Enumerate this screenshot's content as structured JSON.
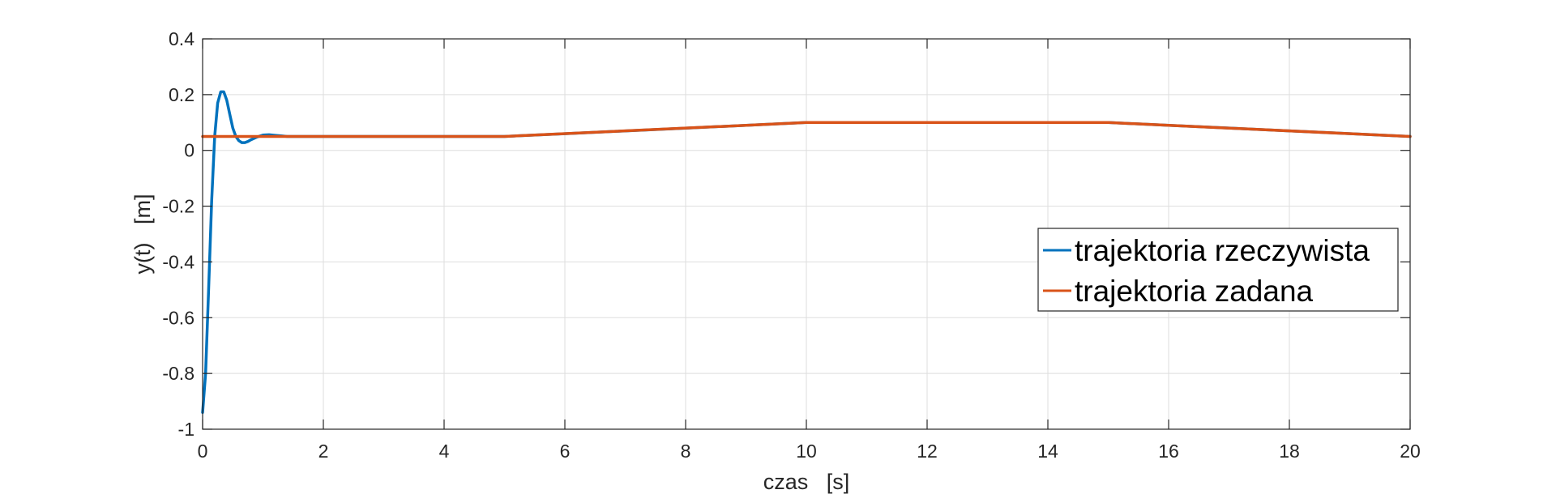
{
  "chart_data": {
    "type": "line",
    "xlabel": "czas   [s]",
    "ylabel": "y(t)   [m]",
    "xlim": [
      0,
      20
    ],
    "ylim": [
      -1,
      0.4
    ],
    "xticks": [
      0,
      2,
      4,
      6,
      8,
      10,
      12,
      14,
      16,
      18,
      20
    ],
    "xtick_labels": [
      "0",
      "2",
      "4",
      "6",
      "8",
      "10",
      "12",
      "14",
      "16",
      "18",
      "20"
    ],
    "yticks": [
      -1,
      -0.8,
      -0.6,
      -0.4,
      -0.2,
      0,
      0.2,
      0.4
    ],
    "ytick_labels": [
      "-1",
      "-0.8",
      "-0.6",
      "-0.4",
      "-0.2",
      "0",
      "0.2",
      "0.4"
    ],
    "grid": true,
    "legend_position": "right",
    "series": [
      {
        "name": "trajektoria rzeczywista",
        "color": "#0072BD",
        "x": [
          0,
          0.05,
          0.1,
          0.15,
          0.2,
          0.25,
          0.3,
          0.35,
          0.4,
          0.45,
          0.5,
          0.55,
          0.6,
          0.65,
          0.7,
          0.75,
          0.8,
          0.9,
          1.0,
          1.1,
          1.2,
          1.3,
          1.4,
          1.5,
          2,
          3,
          4,
          5,
          6,
          8,
          10,
          12,
          14,
          15,
          16,
          18,
          20
        ],
        "y": [
          -0.94,
          -0.8,
          -0.5,
          -0.18,
          0.05,
          0.17,
          0.21,
          0.21,
          0.18,
          0.13,
          0.08,
          0.05,
          0.035,
          0.028,
          0.028,
          0.032,
          0.038,
          0.048,
          0.055,
          0.056,
          0.054,
          0.052,
          0.05,
          0.05,
          0.05,
          0.05,
          0.05,
          0.05,
          0.06,
          0.08,
          0.1,
          0.1,
          0.1,
          0.1,
          0.09,
          0.07,
          0.05
        ]
      },
      {
        "name": "trajektoria zadana",
        "color": "#D95319",
        "x": [
          0,
          5,
          10,
          15,
          20
        ],
        "y": [
          0.05,
          0.05,
          0.1,
          0.1,
          0.05
        ]
      }
    ]
  }
}
